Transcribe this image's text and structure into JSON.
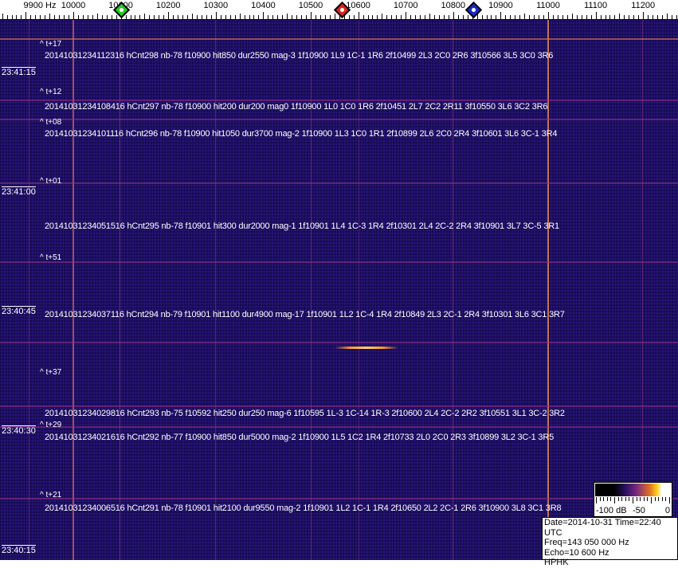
{
  "axis": {
    "unit_label": "9900 Hz",
    "freq_labels": [
      "10000",
      "10100",
      "10200",
      "10300",
      "10400",
      "10500",
      "10600",
      "10700",
      "10800",
      "10900",
      "11000",
      "11100",
      "11200"
    ],
    "markers": [
      {
        "name": "green-marker",
        "freq_hz": 10100,
        "color": "#22cc22"
      },
      {
        "name": "red-marker",
        "freq_hz": 10566,
        "color": "#dd2222"
      },
      {
        "name": "blue-marker",
        "freq_hz": 10843,
        "color": "#1a2acc"
      }
    ]
  },
  "time_labels": [
    "23:41:15",
    "23:41:00",
    "23:40:45",
    "23:40:30",
    "23:40:15"
  ],
  "offset_labels": [
    "^ t+17",
    "^ t+12",
    "^ t+08",
    "^ t+01",
    "^ t+51",
    "^ t+37",
    "^ t+29",
    "^ t+21"
  ],
  "events": [
    "20141031234112316 hCnt298 nb-78 f10900 hit850 dur2550 mag-3 1f10900 1L9 1C-1 1R6 2f10499 2L3 2C0 2R6 3f10566 3L5 3C0 3R6",
    "20141031234108416 hCnt297 nb-78 f10900 hit200 dur200 mag0 1f10900 1L0 1C0 1R6 2f10451 2L7 2C2 2R11 3f10550 3L6 3C2 3R6",
    "20141031234101116 hCnt296 nb-78 f10900 hit1050 dur3700 mag-2 1f10900 1L3 1C0 1R1 2f10899 2L6 2C0 2R4 3f10601 3L6 3C-1 3R4",
    "20141031234051516 hCnt295 nb-78 f10901 hit300 dur2000 mag-1 1f10901 1L4 1C-3 1R4 2f10301 2L4 2C-2 2R4 3f10901 3L7 3C-5 3R1",
    "20141031234037116 hCnt294 nb-79 f10901 hit1100 dur4900 mag-17 1f10901 1L2 1C-4 1R4 2f10849 2L3 2C-1 2R4 3f10301 3L6 3C1 3R7",
    "20141031234029816 hCnt293 nb-75 f10592 hit250 dur250 mag-6 1f10595 1L-3 1C-14 1R-3 2f10600 2L4 2C-2 2R2 3f10551 3L1 3C-2 3R2",
    "20141031234021616 hCnt292 nb-77 f10900 hit850 dur5000 mag-2 1f10900 1L5 1C2 1R4 2f10733 2L0 2C0 2R3 3f10899 3L2 3C-1 3R5",
    "20141031234006516 hCnt291 nb-78 f10901 hit2100 dur9550 mag-2 1f10901 1L2 1C-1 1R4 2f10650 2L2 2C-1 2R6 3f10900 3L8 3C1 3R8"
  ],
  "colorbar": {
    "labels": [
      "-100 dB",
      "-50",
      "0"
    ]
  },
  "info": {
    "datetime": "Date=2014-10-31 Time=22:40 UTC",
    "freq": "Freq=143 050 000 Hz",
    "echo": "Echo=10 600 Hz",
    "station": "HPHK"
  },
  "colors": {
    "background": "#1f1070",
    "carrier": "#ff8a40",
    "meteor": "#ffc050"
  }
}
